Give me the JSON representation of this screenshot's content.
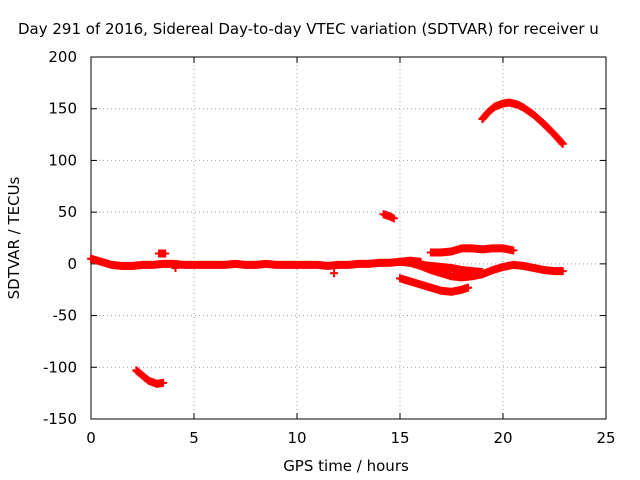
{
  "chart_data": {
    "type": "scatter",
    "title": "Day 291 of 2016, Sidereal Day-to-day VTEC variation (SDTVAR) for receiver u",
    "xlabel": "GPS time / hours",
    "ylabel": "SDTVAR / TECUs",
    "xlim": [
      0,
      25
    ],
    "ylim": [
      -150,
      200
    ],
    "xticks": [
      "0",
      "5",
      "10",
      "15",
      "20",
      "25"
    ],
    "yticks": [
      "-150",
      "-100",
      "-50",
      "0",
      "50",
      "100",
      "150",
      "200"
    ],
    "grid": true,
    "marker": "plus",
    "color": "#ff0000",
    "series": [
      {
        "points": [
          [
            0,
            5
          ],
          [
            0.5,
            2
          ],
          [
            1,
            -1
          ],
          [
            1.5,
            -2
          ],
          [
            2,
            -2
          ],
          [
            2.5,
            -1
          ],
          [
            3,
            -1
          ],
          [
            3.5,
            0
          ],
          [
            4,
            0
          ],
          [
            4.5,
            -1
          ],
          [
            5,
            -1
          ],
          [
            5.5,
            -1
          ],
          [
            6,
            -1
          ],
          [
            6.5,
            -1
          ],
          [
            7,
            0
          ],
          [
            7.5,
            -1
          ],
          [
            8,
            -1
          ],
          [
            8.5,
            0
          ],
          [
            9,
            -1
          ],
          [
            9.5,
            -1
          ],
          [
            10,
            -1
          ],
          [
            10.5,
            -1
          ],
          [
            11,
            -1
          ],
          [
            11.5,
            -2
          ],
          [
            12,
            -1
          ],
          [
            12.5,
            -1
          ],
          [
            13,
            0
          ],
          [
            13.5,
            0
          ],
          [
            14,
            1
          ],
          [
            14.5,
            1
          ],
          [
            15,
            2
          ],
          [
            15.5,
            3
          ],
          [
            16,
            2
          ]
        ]
      },
      {
        "points": [
          [
            3.3,
            10
          ],
          [
            3.6,
            10
          ]
        ]
      },
      {
        "points": [
          [
            4.1,
            -1
          ],
          [
            4.1,
            -4
          ]
        ]
      },
      {
        "points": [
          [
            11.8,
            -9
          ]
        ]
      },
      {
        "points": [
          [
            14.2,
            48
          ],
          [
            14.5,
            46
          ],
          [
            14.7,
            44
          ]
        ]
      },
      {
        "points": [
          [
            2.2,
            -103
          ],
          [
            2.5,
            -108
          ],
          [
            2.8,
            -113
          ],
          [
            3.2,
            -116
          ],
          [
            3.5,
            -115
          ]
        ]
      },
      {
        "points": [
          [
            15,
            2
          ],
          [
            15.5,
            1
          ],
          [
            16,
            -2
          ],
          [
            16.5,
            -6
          ],
          [
            17,
            -9
          ],
          [
            17.5,
            -12
          ],
          [
            18,
            -13
          ],
          [
            18.5,
            -12
          ],
          [
            19,
            -10
          ],
          [
            19.5,
            -6
          ],
          [
            20,
            -3
          ],
          [
            20.5,
            -1
          ],
          [
            21,
            -2
          ],
          [
            21.5,
            -4
          ],
          [
            22,
            -6
          ],
          [
            22.5,
            -7
          ],
          [
            22.9,
            -7
          ]
        ]
      },
      {
        "points": [
          [
            15.5,
            3
          ],
          [
            16,
            -1
          ],
          [
            16.5,
            -2
          ],
          [
            17,
            -3
          ],
          [
            17.5,
            -4
          ],
          [
            18,
            -6
          ],
          [
            18.5,
            -7
          ],
          [
            19,
            -8
          ]
        ]
      },
      {
        "points": [
          [
            15,
            -14
          ],
          [
            15.5,
            -17
          ],
          [
            16,
            -20
          ],
          [
            16.5,
            -23
          ],
          [
            17,
            -26
          ],
          [
            17.5,
            -27
          ],
          [
            18,
            -25
          ],
          [
            18.3,
            -23
          ]
        ]
      },
      {
        "points": [
          [
            16.5,
            11
          ],
          [
            17,
            11
          ],
          [
            17.5,
            12
          ],
          [
            18,
            15
          ],
          [
            18.5,
            15
          ],
          [
            19,
            14
          ],
          [
            19.5,
            15
          ],
          [
            20,
            15
          ],
          [
            20.5,
            13
          ]
        ]
      },
      {
        "points": [
          [
            19,
            140
          ],
          [
            19.3,
            147
          ],
          [
            19.6,
            152
          ],
          [
            20,
            155
          ],
          [
            20.3,
            156
          ],
          [
            20.7,
            154
          ],
          [
            21,
            151
          ],
          [
            21.5,
            144
          ],
          [
            22,
            135
          ],
          [
            22.5,
            125
          ],
          [
            22.9,
            116
          ]
        ]
      }
    ]
  }
}
